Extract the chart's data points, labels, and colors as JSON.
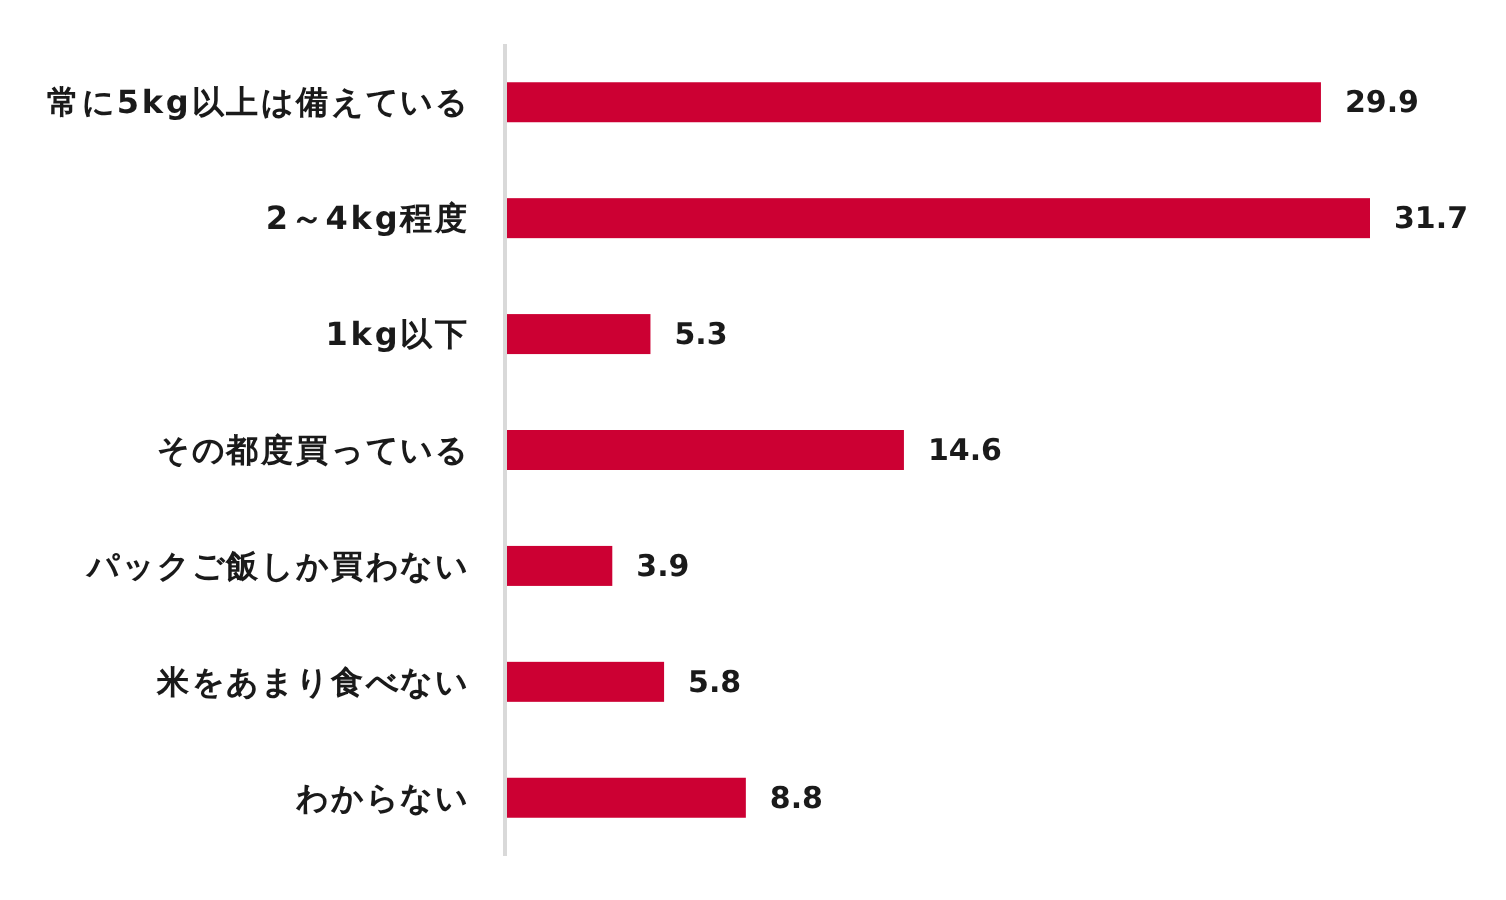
{
  "chart_data": {
    "type": "bar",
    "orientation": "horizontal",
    "categories": [
      "常に5kg以上は備えている",
      "2～4kg程度",
      "1kg以下",
      "その都度買っている",
      "パックご飯しか買わない",
      "米をあまり食べない",
      "わからない"
    ],
    "values": [
      29.9,
      31.7,
      5.3,
      14.6,
      3.9,
      5.8,
      8.8
    ],
    "color": "#cc0033",
    "data_labels": true
  }
}
